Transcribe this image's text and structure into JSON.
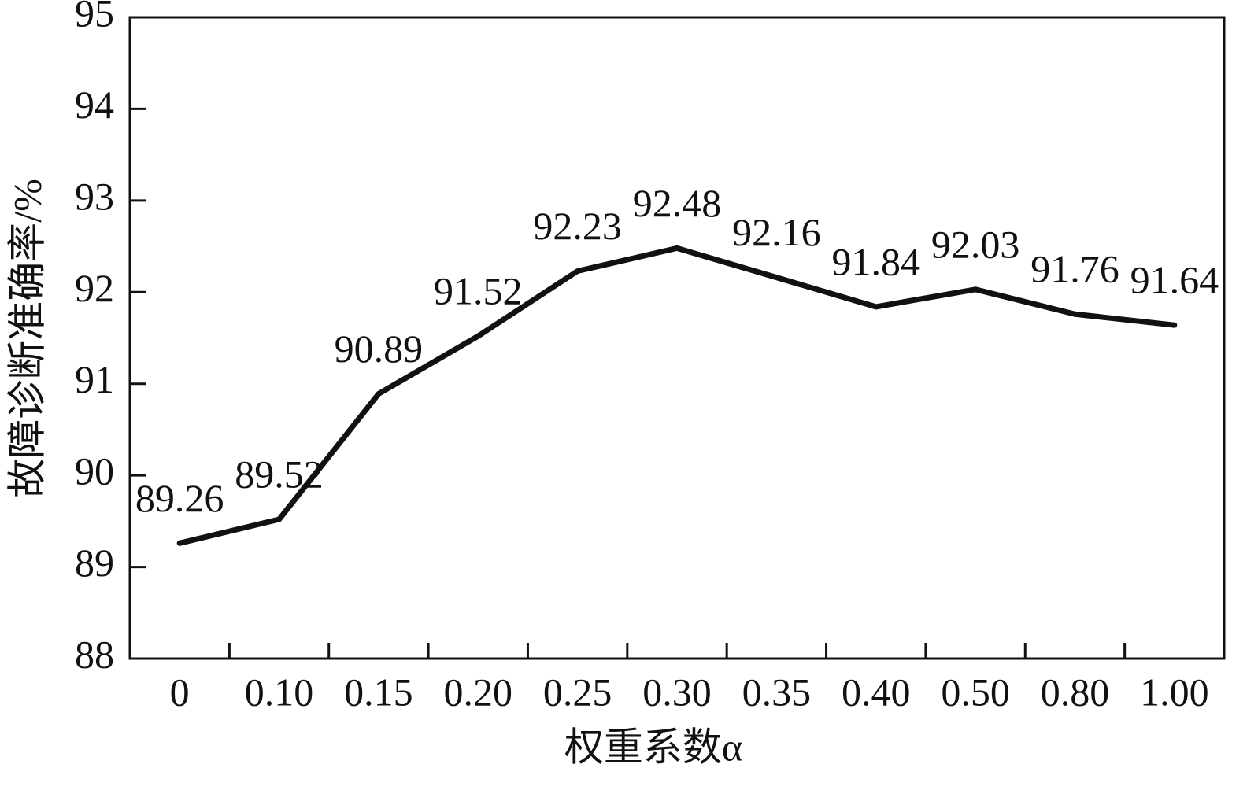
{
  "chart_data": {
    "type": "line",
    "x_label": "权重系数α",
    "y_label": "故障诊断准确率/%",
    "categories": [
      "0",
      "0.10",
      "0.15",
      "0.20",
      "0.25",
      "0.30",
      "0.35",
      "0.40",
      "0.50",
      "0.80",
      "1.00"
    ],
    "values": [
      89.26,
      89.52,
      90.89,
      91.52,
      92.23,
      92.48,
      92.16,
      91.84,
      92.03,
      91.76,
      91.64
    ],
    "color": "#111111",
    "ylim": [
      88,
      95
    ],
    "yticks": [
      88,
      89,
      90,
      91,
      92,
      93,
      94,
      95
    ],
    "grid": false
  }
}
